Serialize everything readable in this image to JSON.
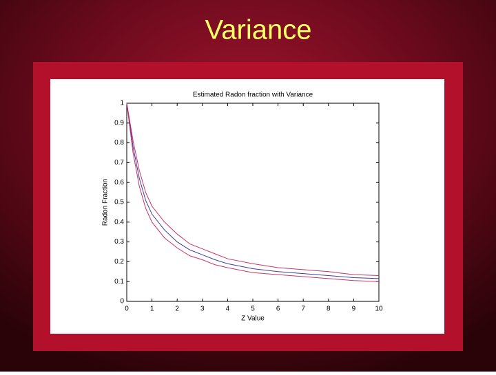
{
  "slide_title": "Variance",
  "chart_data": {
    "type": "line",
    "title": "Estimated Radon fraction with Variance",
    "x_label": "Z Value",
    "y_label": "Radon Fraction",
    "x": [
      0,
      0.25,
      0.5,
      0.75,
      1,
      1.5,
      2,
      2.5,
      3,
      3.5,
      4,
      5,
      6,
      7,
      8,
      9,
      10
    ],
    "series": [
      {
        "color": "#c8326a",
        "values": [
          1.0,
          0.81,
          0.66,
          0.55,
          0.48,
          0.4,
          0.34,
          0.29,
          0.265,
          0.24,
          0.215,
          0.19,
          0.17,
          0.16,
          0.15,
          0.135,
          0.13
        ]
      },
      {
        "color": "#3c3c9c",
        "values": [
          1.0,
          0.78,
          0.62,
          0.51,
          0.44,
          0.36,
          0.3,
          0.26,
          0.235,
          0.21,
          0.19,
          0.165,
          0.15,
          0.14,
          0.13,
          0.12,
          0.115
        ]
      },
      {
        "color": "#c8326a",
        "values": [
          1.0,
          0.75,
          0.58,
          0.47,
          0.4,
          0.32,
          0.27,
          0.23,
          0.21,
          0.185,
          0.17,
          0.145,
          0.135,
          0.125,
          0.115,
          0.105,
          0.1
        ]
      }
    ],
    "xlim": [
      0,
      10
    ],
    "xticks": [
      0,
      1,
      2,
      3,
      4,
      5,
      6,
      7,
      8,
      9,
      10
    ],
    "ylim": [
      0,
      1
    ],
    "yticks": [
      0,
      0.1,
      0.2,
      0.3,
      0.4,
      0.5,
      0.6,
      0.7,
      0.8,
      0.9,
      1
    ],
    "grid": false
  }
}
